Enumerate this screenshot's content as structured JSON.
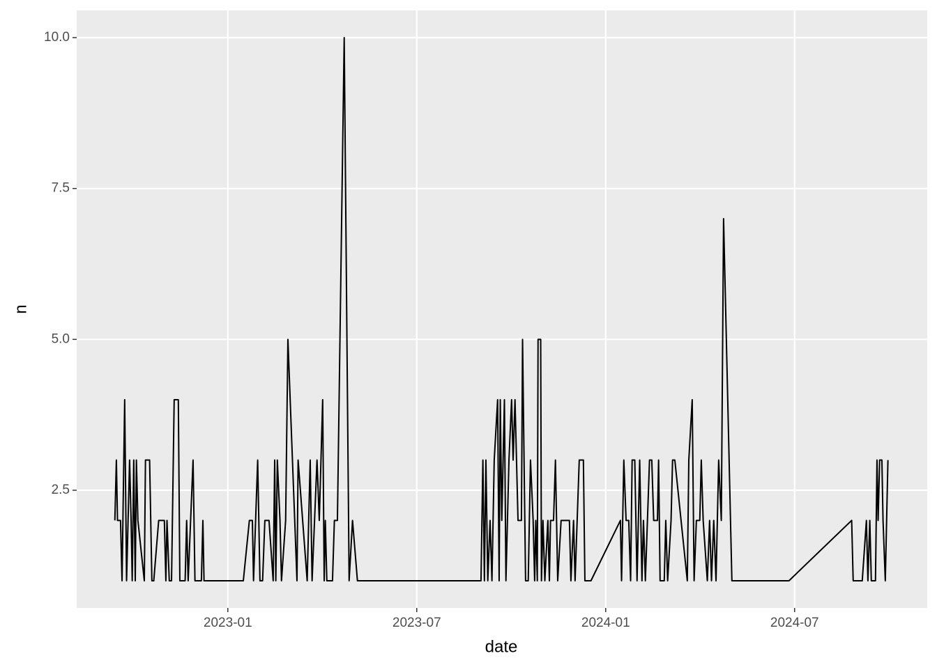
{
  "chart_data": {
    "type": "line",
    "x_label": "date",
    "y_label": "n",
    "x": [
      2022.701,
      2022.705,
      2022.708,
      2022.716,
      2022.72,
      2022.727,
      2022.732,
      2022.74,
      2022.744,
      2022.747,
      2022.751,
      2022.755,
      2022.758,
      2022.762,
      2022.779,
      2022.782,
      2022.793,
      2022.799,
      2022.804,
      2022.817,
      2022.832,
      2022.836,
      2022.839,
      2022.845,
      2022.851,
      2022.858,
      2022.869,
      2022.873,
      2022.887,
      2022.891,
      2022.895,
      2022.908,
      2022.913,
      2022.93,
      2022.934,
      2022.937,
      2023.041,
      2023.057,
      2023.065,
      2023.068,
      2023.079,
      2023.085,
      2023.092,
      2023.098,
      2023.109,
      2023.12,
      2023.124,
      2023.127,
      2023.131,
      2023.138,
      2023.142,
      2023.153,
      2023.159,
      2023.183,
      2023.186,
      2023.21,
      2023.218,
      2023.223,
      2023.236,
      2023.242,
      2023.251,
      2023.255,
      2023.258,
      2023.262,
      2023.277,
      2023.282,
      2023.29,
      2023.308,
      2023.321,
      2023.33,
      2023.343,
      2023.67,
      2023.675,
      2023.679,
      2023.683,
      2023.688,
      2023.694,
      2023.699,
      2023.705,
      2023.714,
      2023.718,
      2023.721,
      2023.725,
      2023.732,
      2023.736,
      2023.744,
      2023.751,
      2023.755,
      2023.76,
      2023.768,
      2023.777,
      2023.78,
      2023.788,
      2023.795,
      2023.801,
      2023.808,
      2023.812,
      2023.815,
      2023.819,
      2023.821,
      2023.828,
      2023.83,
      2023.834,
      2023.839,
      2023.847,
      2023.851,
      2023.854,
      2023.862,
      2023.867,
      2023.873,
      2023.882,
      2023.904,
      2023.908,
      2023.915,
      2023.919,
      2023.93,
      2023.941,
      2023.945,
      2023.961,
      2024.039,
      2024.042,
      2024.048,
      2024.054,
      2024.061,
      2024.066,
      2024.07,
      2024.077,
      2024.083,
      2024.09,
      2024.096,
      2024.1,
      2024.105,
      2024.116,
      2024.122,
      2024.127,
      2024.137,
      2024.14,
      2024.144,
      2024.155,
      2024.159,
      2024.164,
      2024.173,
      2024.177,
      2024.183,
      2024.216,
      2024.22,
      2024.229,
      2024.234,
      2024.24,
      2024.249,
      2024.253,
      2024.258,
      2024.269,
      2024.275,
      2024.28,
      2024.286,
      2024.292,
      2024.299,
      2024.306,
      2024.312,
      2024.334,
      2024.485,
      2024.651,
      2024.655,
      2024.679,
      2024.69,
      2024.694,
      2024.699,
      2024.703,
      2024.714,
      2024.718,
      2024.721,
      2024.725,
      2024.731,
      2024.734,
      2024.74,
      2024.747
    ],
    "values": [
      2,
      3,
      2,
      2,
      1,
      4,
      1,
      3,
      2,
      1,
      3,
      1,
      3,
      2,
      1,
      3,
      3,
      1,
      1,
      2,
      2,
      1,
      2,
      1,
      1,
      4,
      4,
      1,
      1,
      2,
      1,
      3,
      1,
      1,
      2,
      1,
      1,
      2,
      2,
      1,
      3,
      1,
      1,
      2,
      2,
      1,
      3,
      1,
      3,
      2,
      1,
      2,
      5,
      1,
      3,
      1,
      3,
      1,
      3,
      2,
      4,
      1,
      2,
      1,
      1,
      2,
      2,
      10,
      1,
      2,
      1,
      1,
      3,
      1,
      3,
      1,
      2,
      1,
      3,
      4,
      1,
      4,
      2,
      4,
      1,
      3,
      4,
      3,
      4,
      2,
      2,
      5,
      1,
      1,
      3,
      2,
      1,
      2,
      1,
      5,
      5,
      1,
      2,
      1,
      2,
      1,
      2,
      2,
      3,
      1,
      2,
      2,
      1,
      2,
      1,
      3,
      3,
      1,
      1,
      2,
      1,
      3,
      2,
      2,
      1,
      3,
      3,
      1,
      3,
      1,
      2,
      1,
      3,
      3,
      2,
      2,
      3,
      1,
      1,
      2,
      1,
      2,
      3,
      3,
      1,
      3,
      4,
      1,
      2,
      2,
      3,
      2,
      1,
      2,
      1,
      2,
      1,
      3,
      2,
      7,
      1,
      1,
      2,
      1,
      1,
      2,
      1,
      2,
      1,
      1,
      3,
      2,
      3,
      3,
      2,
      1,
      3
    ],
    "color": "#000000",
    "xlim": [
      2022.6,
      2024.851
    ],
    "xticks": [
      {
        "value": 2023,
        "label": "2023-01"
      },
      {
        "value": 2023.5,
        "label": "2023-07"
      },
      {
        "value": 2024,
        "label": "2024-01"
      },
      {
        "value": 2024.5,
        "label": "2024-07"
      }
    ],
    "ylim": [
      0.55,
      10.45
    ],
    "yticks": [
      2.5,
      {
        "value": 5,
        "label": "5.0"
      },
      7.5,
      {
        "value": 10,
        "label": "10.0"
      }
    ],
    "grid": true
  }
}
